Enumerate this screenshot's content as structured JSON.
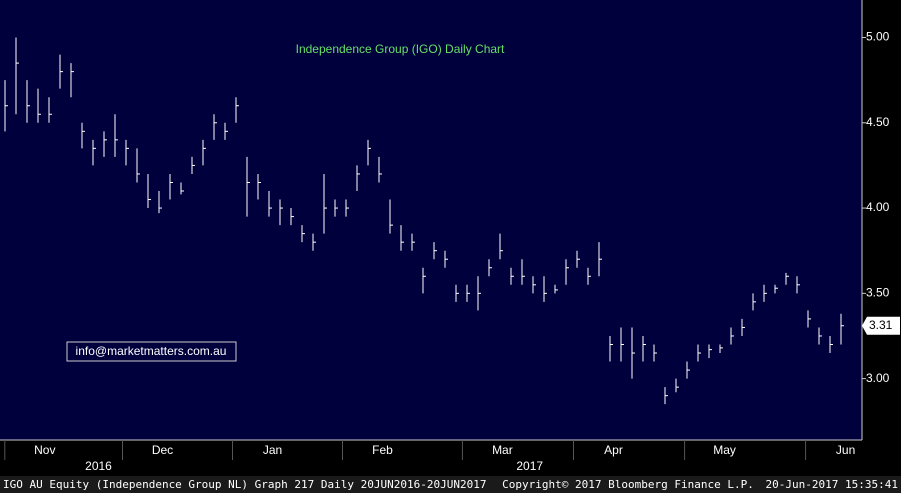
{
  "chart_data": {
    "type": "ohlc",
    "title": "Independence Group (IGO) Daily Chart",
    "annotation": "info@marketmatters.com.au",
    "last_price": {
      "value": 3.31,
      "label": "3.31"
    },
    "color": "#ffffff",
    "high": [
      4.75,
      5.0,
      4.75,
      4.7,
      4.65,
      4.9,
      4.85,
      4.5,
      4.4,
      4.45,
      4.55,
      4.4,
      4.35,
      4.2,
      4.1,
      4.2,
      4.15,
      4.3,
      4.4,
      4.55,
      4.5,
      4.65,
      4.3,
      4.2,
      4.1,
      4.05,
      4.0,
      3.9,
      3.85,
      4.2,
      4.05,
      4.05,
      4.25,
      4.4,
      4.3,
      4.05,
      3.9,
      3.85,
      3.65,
      3.8,
      3.75,
      3.55,
      3.55,
      3.6,
      3.7,
      3.85,
      3.65,
      3.7,
      3.6,
      3.6,
      3.55,
      3.7,
      3.75,
      3.65,
      3.8,
      3.25,
      3.3,
      3.3,
      3.25,
      3.2,
      2.95,
      3.0,
      3.1,
      3.2,
      3.2,
      3.2,
      3.3,
      3.35,
      3.5,
      3.55,
      3.55,
      3.62,
      3.6,
      3.4,
      3.3,
      3.25,
      3.38
    ],
    "low": [
      4.45,
      4.55,
      4.5,
      4.5,
      4.5,
      4.7,
      4.65,
      4.35,
      4.25,
      4.3,
      4.3,
      4.25,
      4.15,
      4.0,
      3.97,
      4.05,
      4.08,
      4.2,
      4.25,
      4.4,
      4.4,
      4.5,
      3.95,
      4.05,
      3.95,
      3.9,
      3.9,
      3.8,
      3.75,
      3.85,
      3.95,
      3.95,
      4.1,
      4.25,
      4.15,
      3.85,
      3.75,
      3.75,
      3.5,
      3.7,
      3.65,
      3.45,
      3.45,
      3.4,
      3.6,
      3.7,
      3.55,
      3.55,
      3.5,
      3.45,
      3.5,
      3.55,
      3.65,
      3.55,
      3.6,
      3.1,
      3.1,
      3.0,
      3.1,
      3.1,
      2.85,
      2.92,
      3.0,
      3.1,
      3.12,
      3.15,
      3.2,
      3.25,
      3.4,
      3.45,
      3.5,
      3.55,
      3.5,
      3.3,
      3.2,
      3.15,
      3.2
    ],
    "close": [
      4.6,
      4.85,
      4.6,
      4.55,
      4.55,
      4.8,
      4.8,
      4.45,
      4.35,
      4.4,
      4.4,
      4.35,
      4.2,
      4.05,
      4.0,
      4.15,
      4.1,
      4.25,
      4.35,
      4.5,
      4.45,
      4.6,
      4.15,
      4.15,
      4.0,
      4.0,
      3.95,
      3.85,
      3.8,
      4.0,
      4.0,
      4.0,
      4.2,
      4.35,
      4.2,
      3.9,
      3.8,
      3.8,
      3.6,
      3.75,
      3.7,
      3.5,
      3.5,
      3.5,
      3.65,
      3.75,
      3.6,
      3.6,
      3.55,
      3.5,
      3.52,
      3.65,
      3.7,
      3.6,
      3.7,
      3.2,
      3.2,
      3.15,
      3.2,
      3.15,
      2.9,
      2.95,
      3.05,
      3.15,
      3.17,
      3.18,
      3.25,
      3.3,
      3.45,
      3.5,
      3.53,
      3.6,
      3.55,
      3.35,
      3.25,
      3.2,
      3.31
    ],
    "ylim": [
      2.64,
      5.22
    ],
    "yticks": [
      {
        "value": 3,
        "label": "3.00"
      },
      {
        "value": 3.5,
        "label": "3.50"
      },
      {
        "value": 4,
        "label": "4.00"
      },
      {
        "value": 4.5,
        "label": "4.50"
      },
      {
        "value": 5,
        "label": "5.00"
      }
    ],
    "xticks": [
      {
        "value": 1.8,
        "label": "Nov"
      },
      {
        "value": 12.5,
        "label": "Dec"
      },
      {
        "value": 22.5,
        "label": "Jan"
      },
      {
        "value": 32.5,
        "label": "Feb"
      },
      {
        "value": 43.4,
        "label": "Mar"
      },
      {
        "value": 53.5,
        "label": "Apr"
      },
      {
        "value": 63.6,
        "label": "May"
      },
      {
        "value": 74.6,
        "label": "Jun"
      }
    ],
    "years": [
      {
        "value": 8.5,
        "label": "2016"
      },
      {
        "value": 47.7,
        "label": "2017"
      }
    ],
    "footer": {
      "left": "IGO AU Equity (Independence Group NL) Graph 217  Daily 20JUN2016-20JUN2017",
      "center": "Copyright© 2017 Bloomberg Finance L.P.",
      "right": "20-Jun-2017 15:35:41"
    }
  }
}
